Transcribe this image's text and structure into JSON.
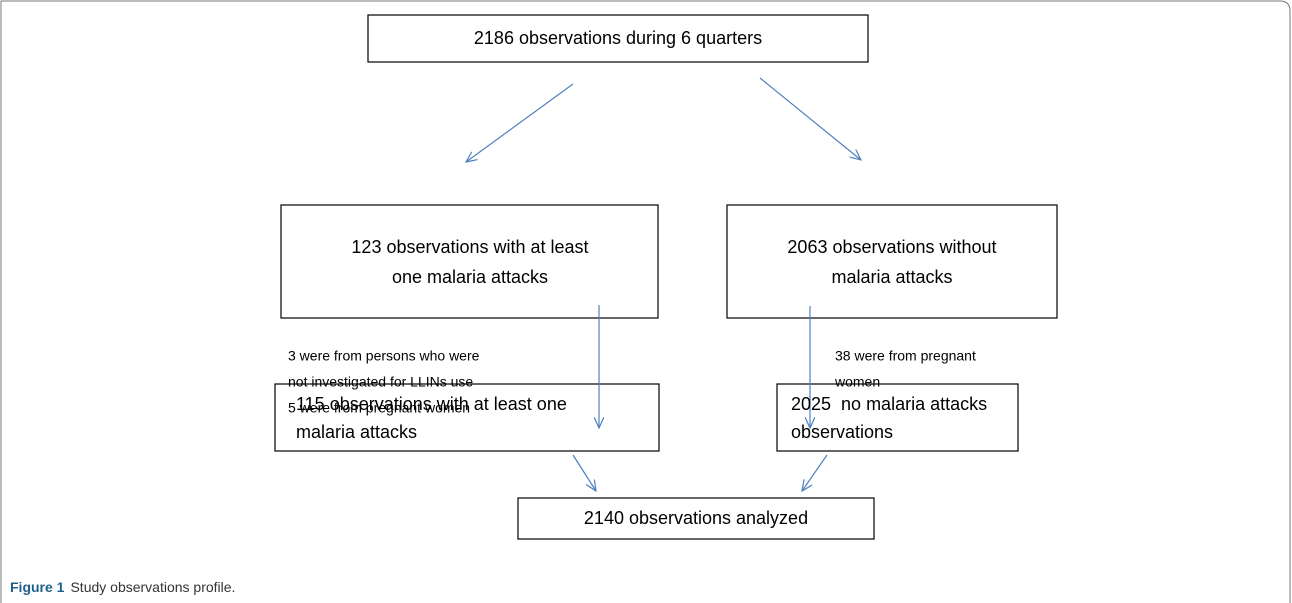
{
  "nodes": [
    {
      "lines": [
        "2186 observations during 6 quarters"
      ]
    },
    {
      "lines": [
        "123 observations with at least",
        "one malaria attacks"
      ]
    },
    {
      "lines": [
        "2063 observations without",
        "malaria attacks"
      ]
    },
    {
      "lines": [
        "115 observations with at least one",
        "malaria attacks"
      ]
    },
    {
      "lines": [
        "2025  no malaria attacks",
        "observations"
      ]
    },
    {
      "lines": [
        "2140 observations analyzed"
      ]
    }
  ],
  "notes": [
    {
      "lines": [
        "3 were from persons who were",
        "not investigated for LLINs use",
        "5 were from pregnant women"
      ]
    },
    {
      "lines": [
        "38 were from pregnant",
        "women"
      ]
    }
  ],
  "caption": {
    "label": "Figure 1",
    "text": "Study observations profile."
  }
}
